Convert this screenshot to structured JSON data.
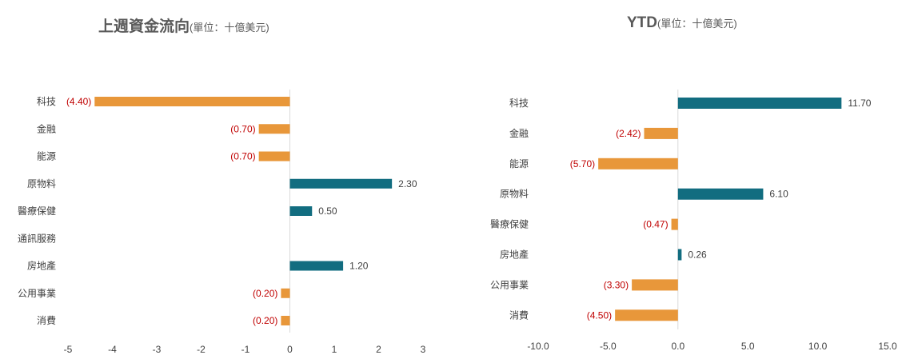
{
  "colors": {
    "positive": "#126d80",
    "negative": "#e8973a",
    "negative_label": "#c00000",
    "axis": "#d9d9d9",
    "text": "#404040"
  },
  "chart_data": [
    {
      "type": "bar",
      "orientation": "horizontal",
      "title": "上週資金流向",
      "unit": "(單位：十億美元)",
      "categories": [
        "科技",
        "金融",
        "能源",
        "原物料",
        "醫療保健",
        "通訊服務",
        "房地產",
        "公用事業",
        "消費"
      ],
      "values": [
        -4.4,
        -0.7,
        -0.7,
        2.3,
        0.5,
        null,
        1.2,
        -0.2,
        -0.2
      ],
      "data_labels": [
        "(4.40)",
        "(0.70)",
        "(0.70)",
        "2.30",
        "0.50",
        "",
        "1.20",
        "(0.20)",
        "(0.20)"
      ],
      "xlim": [
        -5,
        3
      ],
      "xticks": [
        "-5",
        "-4",
        "-3",
        "-2",
        "-1",
        "0",
        "1",
        "2",
        "3"
      ],
      "grid": false
    },
    {
      "type": "bar",
      "orientation": "horizontal",
      "title": "YTD",
      "unit": "(單位：十億美元)",
      "categories": [
        "科技",
        "金融",
        "能源",
        "原物料",
        "醫療保健",
        "房地產",
        "公用事業",
        "消費"
      ],
      "values": [
        11.7,
        -2.42,
        -5.7,
        6.1,
        -0.47,
        0.26,
        -3.3,
        -4.5
      ],
      "data_labels": [
        "11.70",
        "(2.42)",
        "(5.70)",
        "6.10",
        "(0.47)",
        "0.26",
        "(3.30)",
        "(4.50)"
      ],
      "xlim": [
        -10,
        15
      ],
      "xticks": [
        "-10.0",
        "-5.0",
        "0.0",
        "5.0",
        "10.0",
        "15.0"
      ],
      "grid": false
    }
  ]
}
